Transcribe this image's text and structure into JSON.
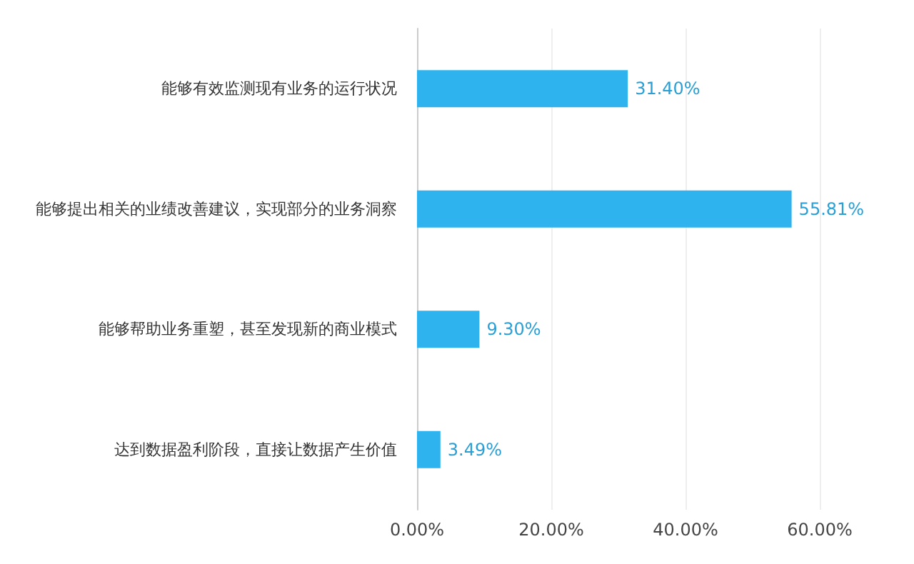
{
  "chart_data": {
    "type": "bar",
    "orientation": "horizontal",
    "categories": [
      "能够有效监测现有业务的运行状况",
      "能够提出相关的业绩改善建议，实现部分的业务洞察",
      "能够帮助业务重塑，甚至发现新的商业模式",
      "达到数据盈利阶段，直接让数据产生价值"
    ],
    "values": [
      31.4,
      55.81,
      9.3,
      3.49
    ],
    "value_labels": [
      "31.40%",
      "55.81%",
      "9.30%",
      "3.49%"
    ],
    "color": "#2eb3ee",
    "xlim": [
      0,
      60
    ],
    "xticks": [
      {
        "value": 0,
        "label": "0.00%"
      },
      {
        "value": 20,
        "label": "20.00%"
      },
      {
        "value": 40,
        "label": "40.00%"
      },
      {
        "value": 60,
        "label": "60.00%"
      }
    ],
    "grid": "x"
  }
}
